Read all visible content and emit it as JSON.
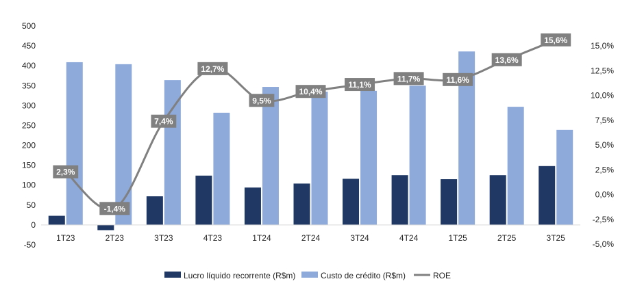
{
  "chart_data": {
    "type": "bar",
    "categories": [
      "1T23",
      "2T23",
      "3T23",
      "4T23",
      "1T24",
      "2T24",
      "3T24",
      "4T24",
      "1T25",
      "2T25",
      "3T25"
    ],
    "series": [
      {
        "name": "Lucro líquido recorrente (R$m)",
        "type": "bar",
        "axis": "left",
        "color": "#1f3864",
        "values": [
          23,
          -13,
          72,
          124,
          94,
          104,
          116,
          125,
          115,
          125,
          148
        ]
      },
      {
        "name": "Custo de crédito (R$m)",
        "type": "bar",
        "axis": "left",
        "color": "#8eaadb",
        "values": [
          409,
          404,
          364,
          282,
          347,
          335,
          337,
          350,
          436,
          297,
          239
        ]
      },
      {
        "name": "ROE",
        "type": "line",
        "axis": "right",
        "color": "#808080",
        "values": [
          2.3,
          -1.4,
          7.4,
          12.7,
          9.5,
          10.4,
          11.1,
          11.7,
          11.6,
          13.6,
          15.6
        ],
        "labels": [
          "2,3%",
          "-1,4%",
          "7,4%",
          "12,7%",
          "9,5%",
          "10,4%",
          "11,1%",
          "11,7%",
          "11,6%",
          "13,6%",
          "15,6%"
        ]
      }
    ],
    "y_left": {
      "range": [
        -50,
        500
      ],
      "ticks": [
        -50,
        0,
        50,
        100,
        150,
        200,
        250,
        300,
        350,
        400,
        450,
        500
      ],
      "tick_labels": [
        "-50",
        "0",
        "50",
        "100",
        "150",
        "200",
        "250",
        "300",
        "350",
        "400",
        "450",
        "500"
      ]
    },
    "y_right": {
      "range": [
        -5,
        17.5
      ],
      "ticks": [
        -5,
        -2.5,
        0,
        2.5,
        5,
        7.5,
        10,
        12.5,
        15
      ],
      "tick_labels": [
        "-5,0%",
        "-2,5%",
        "0,0%",
        "2,5%",
        "5,0%",
        "7,5%",
        "10,0%",
        "12,5%",
        "15,0%"
      ]
    },
    "grid": false,
    "legend": "bottom"
  }
}
